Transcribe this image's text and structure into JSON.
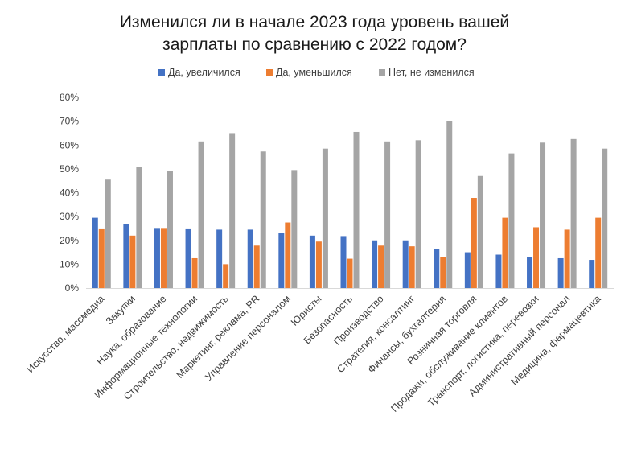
{
  "chart_data": {
    "type": "bar",
    "title_lines": [
      "Изменился ли в начале 2023 года уровень вашей",
      "зарплаты по сравнению с 2022 годом?"
    ],
    "xlabel": "",
    "ylabel": "",
    "ylim": [
      0,
      80
    ],
    "yticks": [
      0,
      10,
      20,
      30,
      40,
      50,
      60,
      70,
      80
    ],
    "ytick_labels": [
      "0%",
      "10%",
      "20%",
      "30%",
      "40%",
      "50%",
      "60%",
      "70%",
      "80%"
    ],
    "grid": false,
    "legend_position": "top-center",
    "categories": [
      "Искусство, массмедиа",
      "Закупки",
      "Наука, образование",
      "Информационные технологии",
      "Строительство, недвижимость",
      "Маркетинг, реклама, PR",
      "Управление персоналом",
      "Юристы",
      "Безопасность",
      "Производство",
      "Стратегия, консалтинг",
      "Финансы, бухгалтерия",
      "Розничная торговля",
      "Продажи, обслуживание клиентов",
      "Транспорт, логистика, перевозки",
      "Административный персонал",
      "Медицина, фармацевтика"
    ],
    "series": [
      {
        "name": "Да, увеличился",
        "color": "#4472c4",
        "values": [
          29.5,
          26.8,
          25.2,
          25.0,
          24.5,
          24.5,
          23.0,
          22.0,
          21.8,
          20.0,
          20.0,
          16.3,
          15.0,
          14.0,
          13.0,
          12.5,
          11.8
        ]
      },
      {
        "name": "Да, уменьшился",
        "color": "#ed7d31",
        "values": [
          25.0,
          22.0,
          25.2,
          12.5,
          10.0,
          17.8,
          27.5,
          19.5,
          12.3,
          17.8,
          17.5,
          13.0,
          37.8,
          29.5,
          25.5,
          24.5,
          29.5
        ]
      },
      {
        "name": "Нет, не изменился",
        "color": "#a5a5a5",
        "values": [
          45.5,
          50.8,
          49.0,
          61.5,
          65.0,
          57.3,
          49.5,
          58.5,
          65.5,
          61.5,
          62.0,
          70.0,
          47.0,
          56.5,
          61.0,
          62.5,
          58.5
        ]
      }
    ]
  }
}
